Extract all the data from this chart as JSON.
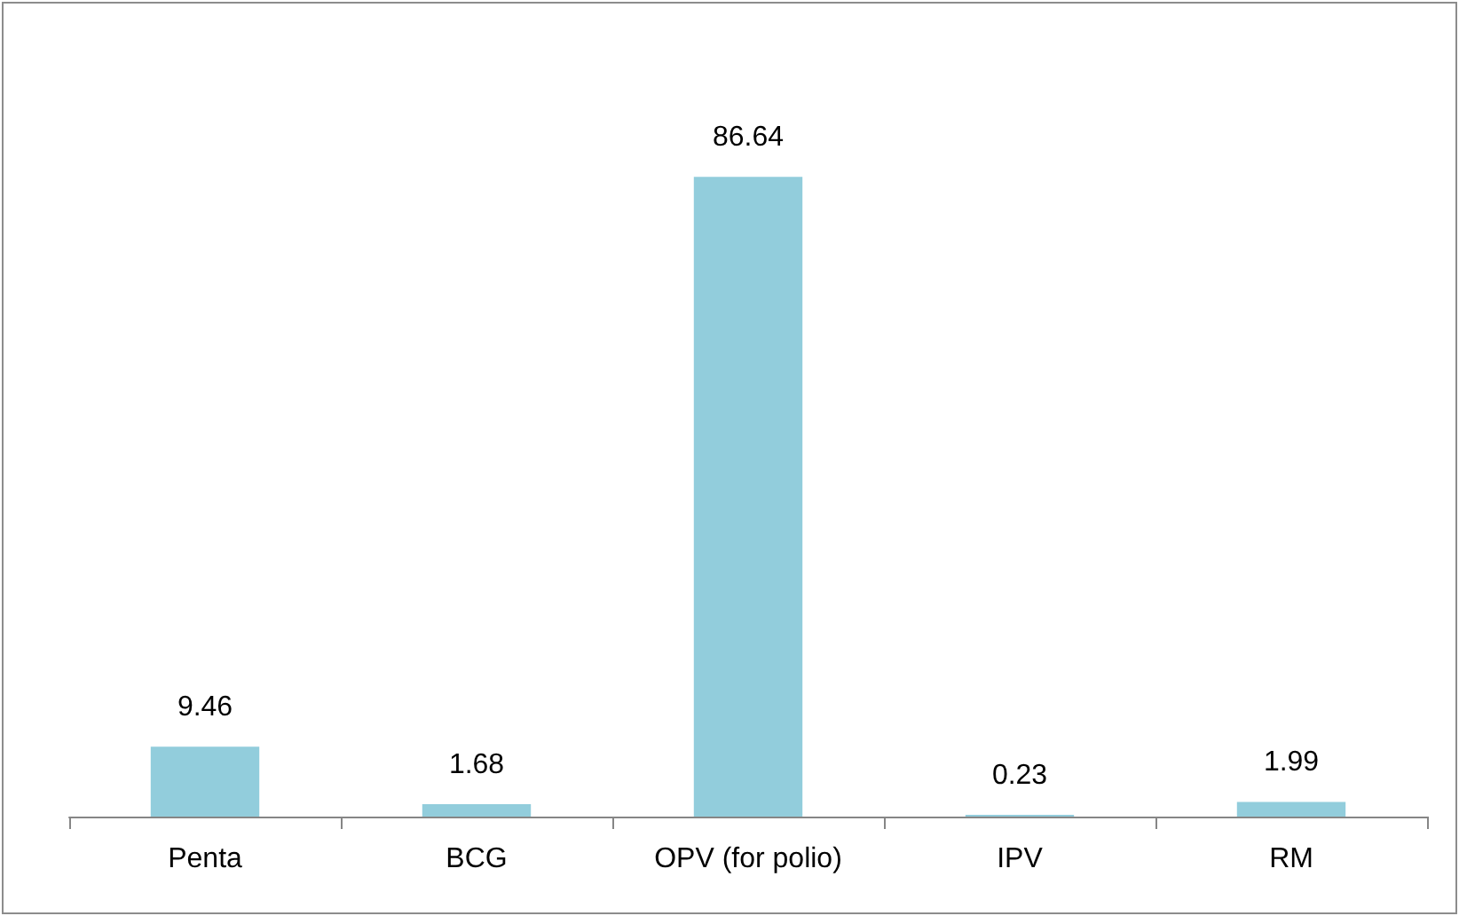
{
  "chart_data": {
    "type": "bar",
    "categories": [
      "Penta",
      "BCG",
      "OPV (for polio)",
      "IPV",
      "RM"
    ],
    "values": [
      9.46,
      1.68,
      86.64,
      0.23,
      1.99
    ],
    "color": "#92cddc",
    "data_labels": true
  }
}
